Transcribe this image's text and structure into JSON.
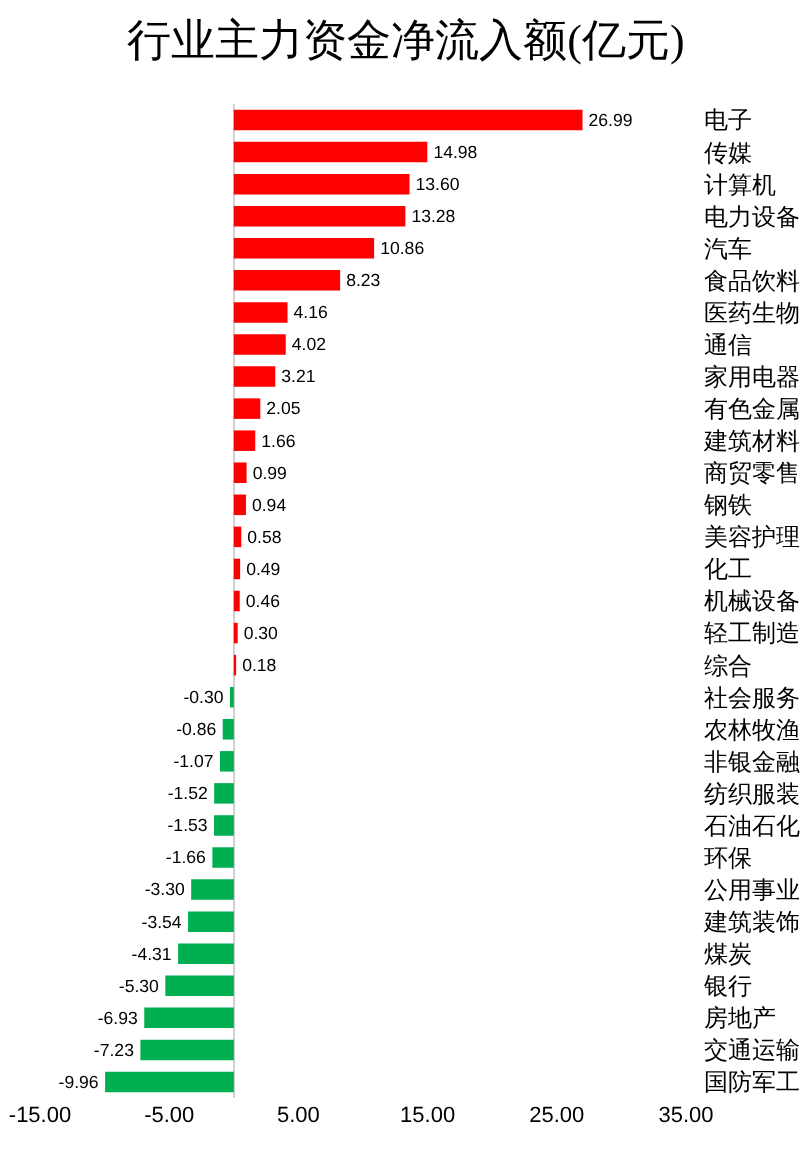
{
  "chart_data": {
    "type": "bar",
    "orientation": "horizontal",
    "title": "行业主力资金净流入额(亿元)",
    "categories": [
      "电子",
      "传媒",
      "计算机",
      "电力设备",
      "汽车",
      "食品饮料",
      "医药生物",
      "通信",
      "家用电器",
      "有色金属",
      "建筑材料",
      "商贸零售",
      "钢铁",
      "美容护理",
      "化工",
      "机械设备",
      "轻工制造",
      "综合",
      "社会服务",
      "农林牧渔",
      "非银金融",
      "纺织服装",
      "石油石化",
      "环保",
      "公用事业",
      "建筑装饰",
      "煤炭",
      "银行",
      "房地产",
      "交通运输",
      "国防军工"
    ],
    "values": [
      26.99,
      14.98,
      13.6,
      13.28,
      10.86,
      8.23,
      4.16,
      4.02,
      3.21,
      2.05,
      1.66,
      0.99,
      0.94,
      0.58,
      0.49,
      0.46,
      0.3,
      0.18,
      -0.3,
      -0.86,
      -1.07,
      -1.52,
      -1.53,
      -1.66,
      -3.3,
      -3.54,
      -4.31,
      -5.3,
      -6.93,
      -7.23,
      -9.96
    ],
    "value_labels": [
      "26.99",
      "14.98",
      "13.60",
      "13.28",
      "10.86",
      "8.23",
      "4.16",
      "4.02",
      "3.21",
      "2.05",
      "1.66",
      "0.99",
      "0.94",
      "0.58",
      "0.49",
      "0.46",
      "0.30",
      "0.18",
      "-0.30",
      "-0.86",
      "-1.07",
      "-1.52",
      "-1.53",
      "-1.66",
      "-3.30",
      "-3.54",
      "-4.31",
      "-5.30",
      "-6.93",
      "-7.23",
      "-9.96"
    ],
    "colors": [
      "#ff0000",
      "#ff0000",
      "#ff0000",
      "#ff0000",
      "#ff0000",
      "#ff0000",
      "#ff0000",
      "#ff0000",
      "#ff0000",
      "#ff0000",
      "#ff0000",
      "#ff0000",
      "#ff0000",
      "#ff0000",
      "#ff0000",
      "#ff0000",
      "#ff0000",
      "#ff0000",
      "#00b050",
      "#00b050",
      "#00b050",
      "#00b050",
      "#00b050",
      "#00b050",
      "#00b050",
      "#00b050",
      "#00b050",
      "#00b050",
      "#00b050",
      "#00b050",
      "#00b050"
    ],
    "xlim": [
      -15,
      35
    ],
    "xticks": [
      {
        "value": -15,
        "label": "-15.00"
      },
      {
        "value": -5,
        "label": "-5.00"
      },
      {
        "value": 5,
        "label": "5.00"
      },
      {
        "value": 15,
        "label": "15.00"
      },
      {
        "value": 25,
        "label": "25.00"
      },
      {
        "value": 35,
        "label": "35.00"
      }
    ],
    "grid": false
  }
}
